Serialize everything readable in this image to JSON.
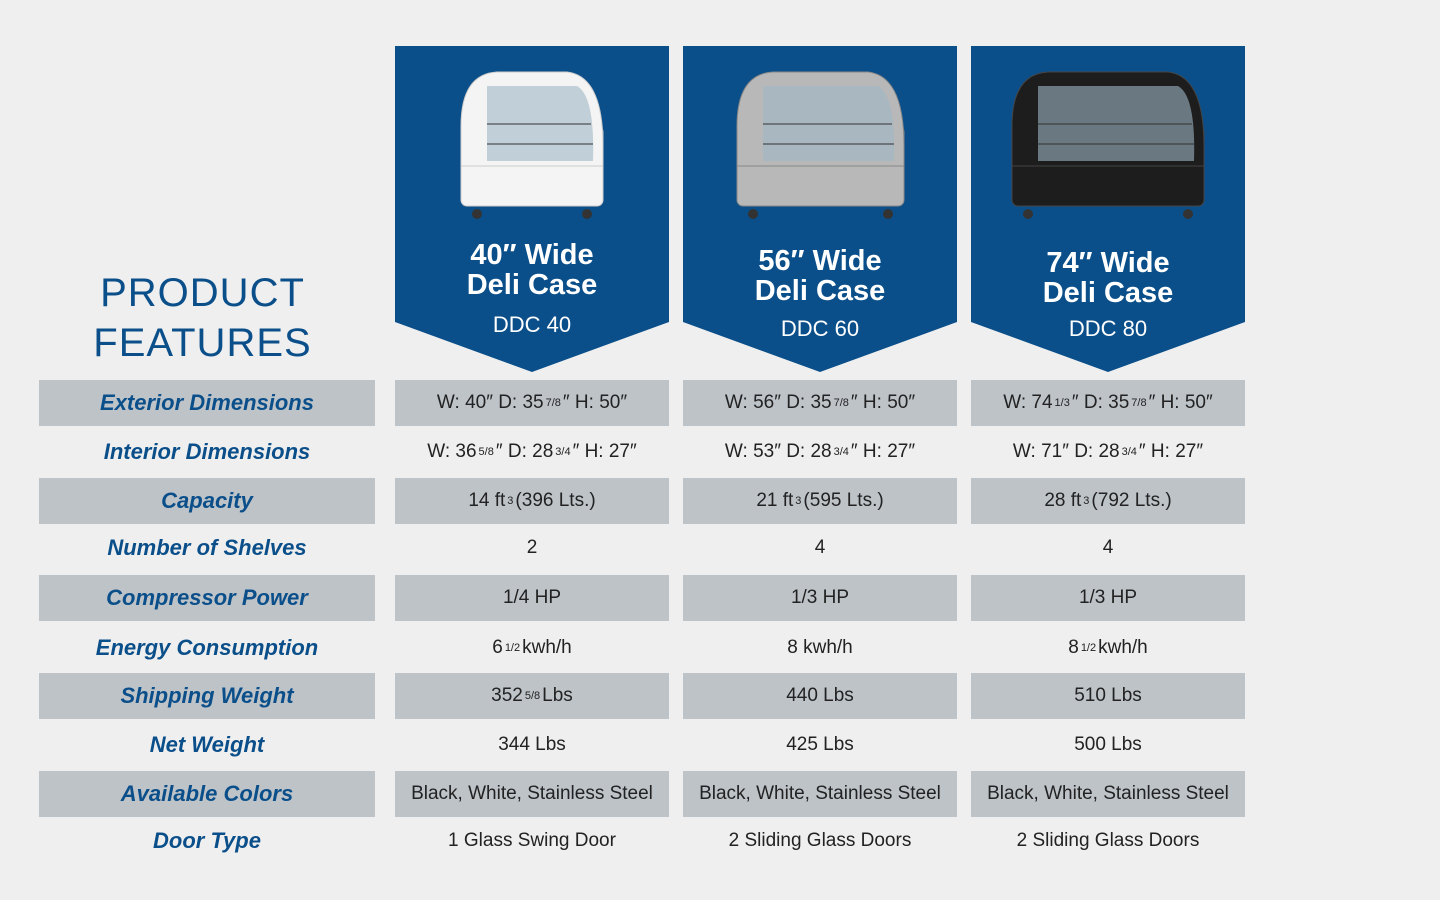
{
  "title": {
    "line1": "PRODUCT",
    "line2": "FEATURES"
  },
  "colors": {
    "brand_blue": "#0b4f8a",
    "row_grey": "#bec3c8",
    "background": "#efefef"
  },
  "products": [
    {
      "name_line1": "40″ Wide",
      "name_line2": "Deli Case",
      "model": "DDC 40",
      "image": "white-deli-case"
    },
    {
      "name_line1": "56″ Wide",
      "name_line2": "Deli Case",
      "model": "DDC 60",
      "image": "stainless-deli-case"
    },
    {
      "name_line1": "74″ Wide",
      "name_line2": "Deli Case",
      "model": "DDC 80",
      "image": "black-deli-case"
    }
  ],
  "rows": [
    {
      "label": "Exterior Dimensions",
      "values": [
        [
          {
            "t": "W: 40″ D: 35"
          },
          {
            "s": "7/8"
          },
          {
            "t": "″ H: 50″"
          }
        ],
        [
          {
            "t": "W: 56″ D: 35"
          },
          {
            "s": "7/8"
          },
          {
            "t": "″ H: 50″"
          }
        ],
        [
          {
            "t": "W: 74"
          },
          {
            "s": "1/3"
          },
          {
            "t": "″ D: 35"
          },
          {
            "s": "7/8"
          },
          {
            "t": "″ H: 50″"
          }
        ]
      ]
    },
    {
      "label": "Interior Dimensions",
      "values": [
        [
          {
            "t": "W: 36"
          },
          {
            "s": "5/8"
          },
          {
            "t": "″ D: 28"
          },
          {
            "s": "3/4"
          },
          {
            "t": "″ H: 27″"
          }
        ],
        [
          {
            "t": "W: 53″ D: 28"
          },
          {
            "s": "3/4"
          },
          {
            "t": "″ H: 27″"
          }
        ],
        [
          {
            "t": "W: 71″ D: 28"
          },
          {
            "s": "3/4"
          },
          {
            "t": "″ H: 27″"
          }
        ]
      ]
    },
    {
      "label": "Capacity",
      "values": [
        [
          {
            "t": "14 ft"
          },
          {
            "s": "3"
          },
          {
            "t": "(396 Lts.)"
          }
        ],
        [
          {
            "t": "21 ft"
          },
          {
            "s": "3"
          },
          {
            "t": "(595 Lts.)"
          }
        ],
        [
          {
            "t": "28 ft"
          },
          {
            "s": "3"
          },
          {
            "t": "(792 Lts.)"
          }
        ]
      ]
    },
    {
      "label": "Number of Shelves",
      "values": [
        [
          {
            "t": "2"
          }
        ],
        [
          {
            "t": "4"
          }
        ],
        [
          {
            "t": "4"
          }
        ]
      ]
    },
    {
      "label": "Compressor Power",
      "values": [
        [
          {
            "t": "1/4 HP"
          }
        ],
        [
          {
            "t": "1/3 HP"
          }
        ],
        [
          {
            "t": "1/3 HP"
          }
        ]
      ]
    },
    {
      "label": "Energy Consumption",
      "values": [
        [
          {
            "t": "6"
          },
          {
            "s": "1/2"
          },
          {
            "t": "kwh/h"
          }
        ],
        [
          {
            "t": "8 kwh/h"
          }
        ],
        [
          {
            "t": "8"
          },
          {
            "s": "1/2"
          },
          {
            "t": "kwh/h"
          }
        ]
      ]
    },
    {
      "label": "Shipping Weight",
      "values": [
        [
          {
            "t": "352"
          },
          {
            "s": "5/8"
          },
          {
            "t": "Lbs"
          }
        ],
        [
          {
            "t": "440 Lbs"
          }
        ],
        [
          {
            "t": "510 Lbs"
          }
        ]
      ]
    },
    {
      "label": "Net Weight",
      "values": [
        [
          {
            "t": "344 Lbs"
          }
        ],
        [
          {
            "t": "425 Lbs"
          }
        ],
        [
          {
            "t": "500 Lbs"
          }
        ]
      ]
    },
    {
      "label": "Available Colors",
      "values": [
        [
          {
            "t": "Black, White, Stainless Steel"
          }
        ],
        [
          {
            "t": "Black, White, Stainless Steel"
          }
        ],
        [
          {
            "t": "Black, White, Stainless Steel"
          }
        ]
      ]
    },
    {
      "label": "Door Type",
      "values": [
        [
          {
            "t": "1 Glass Swing Door"
          }
        ],
        [
          {
            "t": "2 Sliding Glass Doors"
          }
        ],
        [
          {
            "t": "2 Sliding Glass Doors"
          }
        ]
      ]
    }
  ]
}
